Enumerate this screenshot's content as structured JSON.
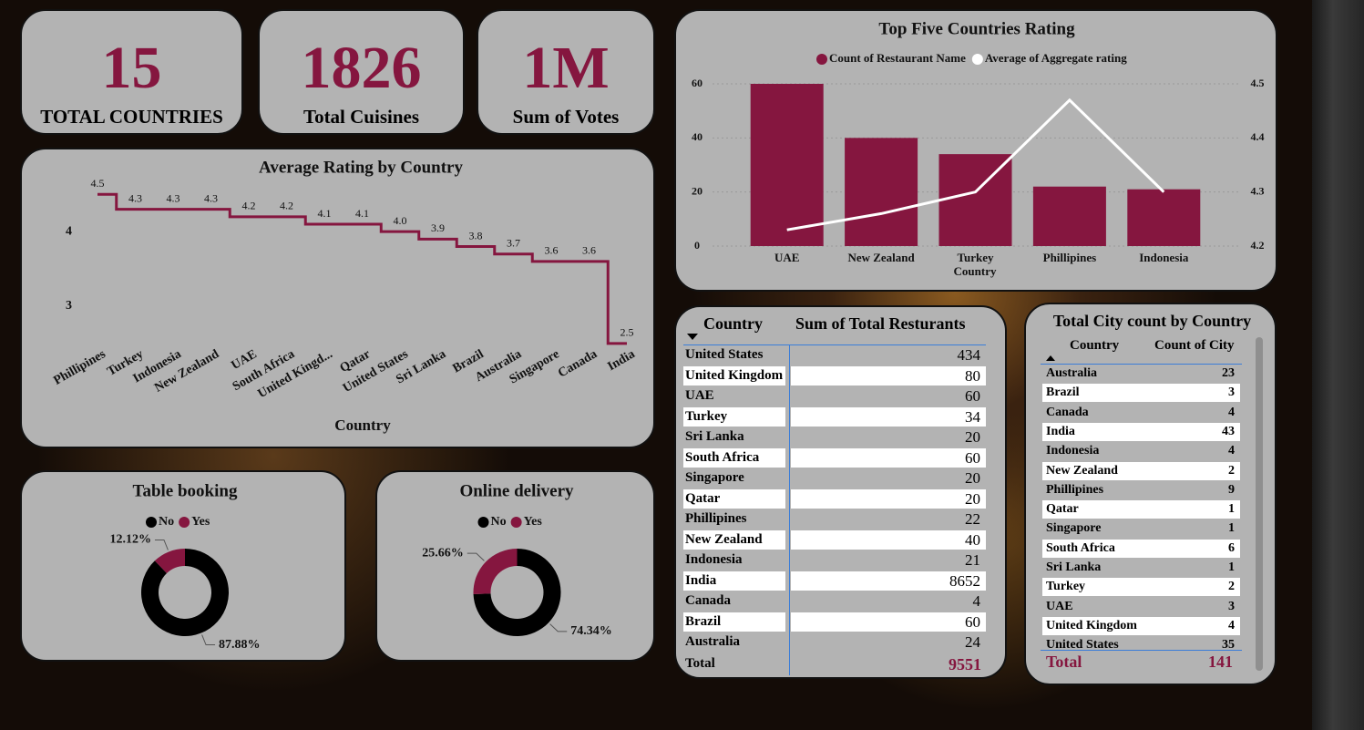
{
  "cards": [
    {
      "value": 15,
      "label": "TOTAL COUNTRIES"
    },
    {
      "value": 1826,
      "label": "Total Cuisines"
    },
    {
      "value": "1M",
      "label": "Sum of Votes"
    }
  ],
  "chart_data": [
    {
      "type": "step",
      "title": "Average Rating by Country",
      "x_label": "Country",
      "categories": [
        "Phillipines",
        "Turkey",
        "Indonesia",
        "New Zealand",
        "UAE",
        "South Africa",
        "United Kingd...",
        "Qatar",
        "United States",
        "Sri Lanka",
        "Brazil",
        "Australia",
        "Singapore",
        "Canada",
        "India"
      ],
      "values": [
        4.5,
        4.3,
        4.3,
        4.3,
        4.2,
        4.2,
        4.1,
        4.1,
        4.0,
        3.9,
        3.8,
        3.7,
        3.6,
        3.6,
        2.5
      ],
      "value_labels": [
        "4.5",
        "4.3",
        "4.3",
        "4.3",
        "4.2",
        "4.2",
        "4.1",
        "4.1",
        "4.0",
        "3.9",
        "3.8",
        "3.7",
        "3.6",
        "3.6",
        "2.5"
      ],
      "color": "#85163f",
      "ylim": [
        2.45,
        4.65
      ],
      "yticks": [
        3,
        4
      ]
    },
    {
      "type": "combo",
      "title": "Top Five Countries Rating",
      "x_label": "Country",
      "categories": [
        "UAE",
        "New Zealand",
        "Turkey",
        "Phillipines",
        "Indonesia"
      ],
      "series": [
        {
          "name": "Count of Restaurant Name",
          "color": "#85163f",
          "values": [
            60,
            40,
            34,
            22,
            21
          ]
        },
        {
          "name": "Average of Aggregate rating",
          "color": "#ffffff",
          "axis": "y2",
          "values": [
            4.23,
            4.26,
            4.3,
            4.47,
            4.3
          ]
        }
      ],
      "ylim": [
        0,
        60
      ],
      "yticks": [
        0,
        20,
        40,
        60
      ],
      "y2lim": [
        4.2,
        4.5
      ],
      "y2ticks": [
        4.2,
        4.3,
        4.4,
        4.5
      ],
      "grid": true,
      "legend": "top"
    },
    {
      "type": "donut",
      "title": "Table booking",
      "categories": [
        "No",
        "Yes"
      ],
      "values": [
        87.88,
        12.12
      ],
      "value_labels": [
        "87.88%",
        "12.12%"
      ],
      "colors": [
        "#000000",
        "#85163f"
      ]
    },
    {
      "type": "donut",
      "title": "Online delivery",
      "categories": [
        "No",
        "Yes"
      ],
      "values": [
        74.34,
        25.66
      ],
      "value_labels": [
        "74.34%",
        "25.66%"
      ],
      "colors": [
        "#000000",
        "#85163f"
      ]
    }
  ],
  "tables": [
    {
      "headers": [
        "Country",
        "Sum of Total Resturants"
      ],
      "rows": [
        [
          "United States",
          434
        ],
        [
          "United Kingdom",
          80
        ],
        [
          "UAE",
          60
        ],
        [
          "Turkey",
          34
        ],
        [
          "Sri Lanka",
          20
        ],
        [
          "South Africa",
          60
        ],
        [
          "Singapore",
          20
        ],
        [
          "Qatar",
          20
        ],
        [
          "Phillipines",
          22
        ],
        [
          "New Zealand",
          40
        ],
        [
          "Indonesia",
          21
        ],
        [
          "India",
          8652
        ],
        [
          "Canada",
          4
        ],
        [
          "Brazil",
          60
        ],
        [
          "Australia",
          24
        ]
      ],
      "total": [
        "Total",
        9551
      ]
    },
    {
      "title": "Total City count by Country",
      "headers": [
        "Country",
        "Count of City"
      ],
      "rows": [
        [
          "Australia",
          23
        ],
        [
          "Brazil",
          3
        ],
        [
          "Canada",
          4
        ],
        [
          "India",
          43
        ],
        [
          "Indonesia",
          4
        ],
        [
          "New Zealand",
          2
        ],
        [
          "Phillipines",
          9
        ],
        [
          "Qatar",
          1
        ],
        [
          "Singapore",
          1
        ],
        [
          "South Africa",
          6
        ],
        [
          "Sri Lanka",
          1
        ],
        [
          "Turkey",
          2
        ],
        [
          "UAE",
          3
        ],
        [
          "United Kingdom",
          4
        ],
        [
          "United States",
          35
        ]
      ],
      "total": [
        "Total",
        141
      ]
    }
  ]
}
